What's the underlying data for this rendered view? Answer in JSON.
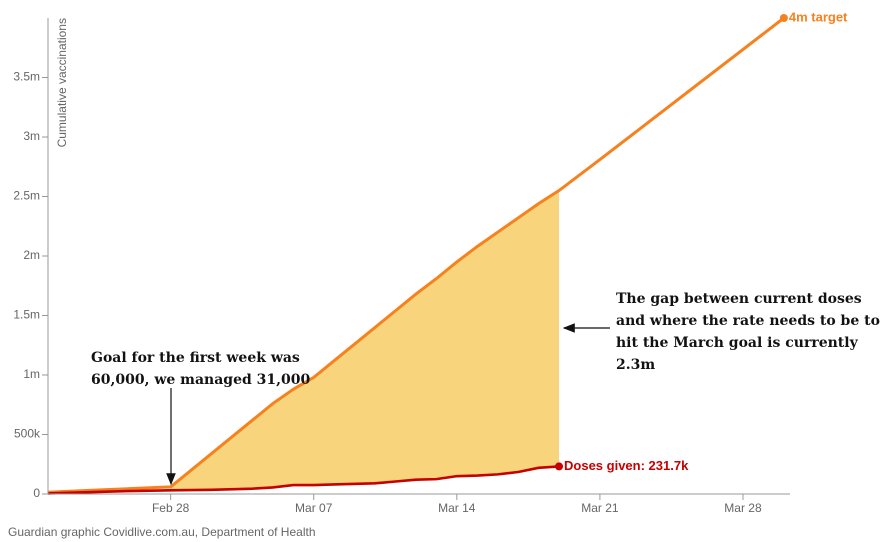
{
  "chart_data": {
    "type": "line",
    "y_label": "Cumulative vaccinations",
    "x": [
      53,
      55,
      57,
      59,
      61,
      63,
      64,
      65,
      66,
      67,
      69,
      70,
      71,
      72,
      73,
      74,
      75,
      76,
      77,
      78,
      80,
      89
    ],
    "series": [
      {
        "name": "4m target",
        "color": "#f5821f",
        "values": [
          15000,
          30000,
          45000,
          60000,
          340000,
          620000,
          760000,
          880000,
          980000,
          1120000,
          1400000,
          1540000,
          1680000,
          1810000,
          1950000,
          2080000,
          2200000,
          2320000,
          2440000,
          2550000,
          2810000,
          4000000
        ]
      },
      {
        "name": "Doses given: 231.7k",
        "color": "#c70000",
        "values": [
          5000,
          15000,
          25000,
          31000,
          35000,
          45000,
          55000,
          75000,
          75000,
          80000,
          90000,
          105000,
          120000,
          125000,
          150000,
          155000,
          165000,
          185000,
          220000,
          231700,
          null,
          null
        ]
      }
    ],
    "fill_color": "#f8d47c",
    "xlim": [
      53,
      89.3
    ],
    "xticks": [
      {
        "value": 59,
        "label": "Feb 28"
      },
      {
        "value": 66,
        "label": "Mar 07"
      },
      {
        "value": 73,
        "label": "Mar 14"
      },
      {
        "value": 80,
        "label": "Mar 21"
      },
      {
        "value": 87,
        "label": "Mar 28"
      }
    ],
    "ylim": [
      0,
      4000000
    ],
    "yticks": [
      0,
      {
        "value": 500000,
        "label": "500k"
      },
      {
        "value": 1000000,
        "label": "1m"
      },
      {
        "value": 1500000,
        "label": "1.5m"
      },
      {
        "value": 2000000,
        "label": "2m"
      },
      {
        "value": 2500000,
        "label": "2.5m"
      },
      {
        "value": 3000000,
        "label": "3m"
      },
      {
        "value": 3500000,
        "label": "3.5m"
      }
    ],
    "annotations": [
      {
        "lines": [
          "Goal for the first week was",
          "60,000, we managed 31,000"
        ]
      },
      {
        "lines": [
          "The gap between current doses",
          "and where the rate needs to be to",
          "hit the March goal is currently",
          "2.3m"
        ]
      }
    ],
    "source": "Guardian graphic Covidlive.com.au, Department of Health"
  }
}
